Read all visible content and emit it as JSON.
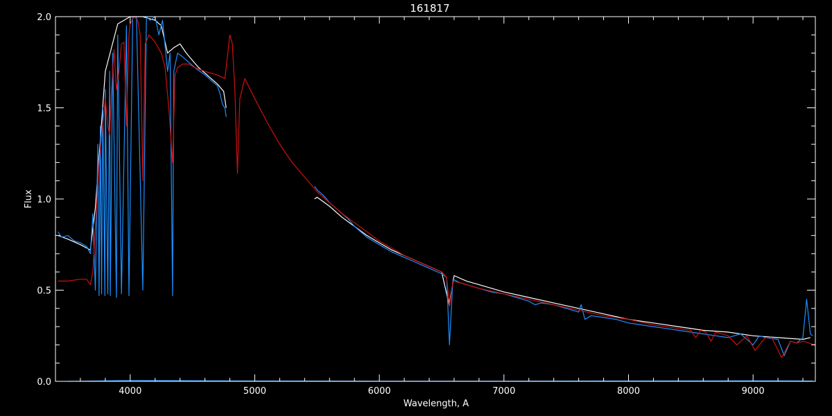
{
  "chart_data": {
    "type": "line",
    "title": "161817",
    "xlabel": "Wavelength, A",
    "ylabel": "Flux",
    "xlim": [
      3400,
      9500
    ],
    "ylim": [
      0.0,
      2.0
    ],
    "x_ticks": [
      4000,
      5000,
      6000,
      7000,
      8000,
      9000
    ],
    "x_tick_labels": [
      "4000",
      "5000",
      "6000",
      "7000",
      "8000",
      "9000"
    ],
    "y_ticks": [
      0.0,
      0.5,
      1.0,
      1.5,
      2.0
    ],
    "y_tick_labels": [
      "0.0",
      "0.5",
      "1.0",
      "1.5",
      "2.0"
    ],
    "x_minor_step": 200,
    "y_minor_step": 0.1,
    "grid": false,
    "colors": {
      "background": "#000000",
      "axes": "#ffffff",
      "white_series": "#ffffff",
      "blue_series": "#1e90ff",
      "red_series": "#d01010"
    },
    "series": [
      {
        "color_key": "white_series",
        "segments": [
          {
            "x": [
              3420,
              3500,
              3600,
              3680,
              3720,
              3800,
              3900,
              4000,
              4100,
              4200,
              4250,
              4300,
              4350,
              4400,
              4450,
              4500,
              4550,
              4600,
              4650,
              4700,
              4750,
              4770
            ],
            "y": [
              0.8,
              0.78,
              0.75,
              0.72,
              0.95,
              1.7,
              1.96,
              2.0,
              2.0,
              1.98,
              1.95,
              1.8,
              1.83,
              1.85,
              1.8,
              1.76,
              1.72,
              1.69,
              1.66,
              1.63,
              1.59,
              1.5
            ]
          },
          {
            "x": [
              5480,
              5500,
              5600,
              5700,
              5800,
              5900,
              6000,
              6100,
              6200,
              6300,
              6400,
              6500,
              6560,
              6600,
              6700,
              6800,
              7000,
              7200,
              7400,
              7600,
              7800,
              8000,
              8200,
              8400,
              8600,
              8800,
              9000,
              9200,
              9400,
              9460
            ],
            "y": [
              1.0,
              1.01,
              0.96,
              0.9,
              0.85,
              0.8,
              0.76,
              0.72,
              0.69,
              0.66,
              0.63,
              0.6,
              0.42,
              0.58,
              0.55,
              0.53,
              0.49,
              0.46,
              0.43,
              0.4,
              0.37,
              0.34,
              0.32,
              0.3,
              0.28,
              0.27,
              0.25,
              0.24,
              0.23,
              0.24
            ]
          }
        ]
      },
      {
        "color_key": "blue_series",
        "segments": [
          {
            "x": [
              3420,
              3450,
              3500,
              3550,
              3600,
              3650,
              3680,
              3700,
              3720,
              3740,
              3750,
              3760,
              3770,
              3780,
              3797,
              3800,
              3820,
              3835,
              3840,
              3860,
              3889,
              3900,
              3930,
              3970,
              3990,
              4020,
              4050,
              4101,
              4130,
              4160,
              4200,
              4230,
              4260,
              4300,
              4320,
              4340,
              4350,
              4380,
              4420,
              4470,
              4520,
              4560,
              4600,
              4650,
              4700,
              4720,
              4740,
              4760,
              4770
            ],
            "y": [
              0.82,
              0.79,
              0.8,
              0.77,
              0.76,
              0.74,
              0.7,
              0.92,
              0.5,
              1.3,
              0.47,
              1.4,
              0.48,
              1.5,
              0.47,
              1.6,
              0.48,
              1.7,
              0.47,
              1.8,
              0.46,
              1.9,
              0.48,
              1.95,
              0.47,
              2.0,
              2.0,
              0.5,
              2.0,
              1.98,
              2.0,
              1.9,
              1.98,
              1.7,
              1.8,
              0.47,
              1.7,
              1.8,
              1.78,
              1.75,
              1.72,
              1.7,
              1.68,
              1.65,
              1.62,
              1.58,
              1.52,
              1.5,
              1.45
            ]
          },
          {
            "x": [
              5480,
              5500,
              5550,
              5600,
              5650,
              5700,
              5750,
              5800,
              5850,
              5900,
              6000,
              6100,
              6200,
              6300,
              6400,
              6500,
              6540,
              6563,
              6590,
              6650,
              6700,
              6800,
              6900,
              7000,
              7100,
              7200,
              7250,
              7300,
              7400,
              7500,
              7600,
              7620,
              7650,
              7700,
              7800,
              7900,
              8000,
              8100,
              8200,
              8300,
              8400,
              8500,
              8600,
              8700,
              8800,
              8900,
              9000,
              9050,
              9100,
              9200,
              9250,
              9300,
              9350,
              9400,
              9430,
              9460,
              9480
            ],
            "y": [
              1.07,
              1.05,
              1.02,
              0.98,
              0.95,
              0.92,
              0.89,
              0.85,
              0.82,
              0.79,
              0.75,
              0.71,
              0.68,
              0.65,
              0.62,
              0.59,
              0.57,
              0.2,
              0.56,
              0.54,
              0.53,
              0.51,
              0.49,
              0.48,
              0.46,
              0.44,
              0.42,
              0.43,
              0.42,
              0.4,
              0.38,
              0.42,
              0.34,
              0.36,
              0.35,
              0.34,
              0.32,
              0.31,
              0.3,
              0.29,
              0.28,
              0.27,
              0.26,
              0.25,
              0.24,
              0.26,
              0.2,
              0.25,
              0.24,
              0.23,
              0.14,
              0.22,
              0.21,
              0.24,
              0.45,
              0.26,
              0.25
            ]
          },
          {
            "x": [
              3500,
              4000,
              5000,
              6000,
              7000,
              8000,
              9000,
              9480
            ],
            "y": [
              0.0,
              0.005,
              0.002,
              0.001,
              0.001,
              0.002,
              0.003,
              0.002
            ]
          }
        ]
      },
      {
        "color_key": "red_series",
        "segments": [
          {
            "x": [
              3420,
              3500,
              3600,
              3650,
              3680,
              3700,
              3750,
              3800,
              3820,
              3835,
              3850,
              3870,
              3889,
              3910,
              3930,
              3950,
              3970,
              3990,
              4000,
              4030,
              4060,
              4080,
              4101,
              4120,
              4150,
              4200,
              4250,
              4280,
              4310,
              4340,
              4360,
              4380,
              4420,
              4470,
              4520,
              4600,
              4700,
              4760,
              4800,
              4820,
              4840,
              4861,
              4880,
              4920,
              5000,
              5100,
              5200,
              5300,
              5400,
              5500,
              5600,
              5700,
              5800,
              5900,
              6000,
              6100,
              6200,
              6300,
              6400,
              6500,
              6540,
              6563,
              6590,
              6650,
              6700,
              6800,
              7000,
              7200,
              7400,
              7600,
              7800,
              8000,
              8200,
              8400,
              8500,
              8540,
              8580,
              8620,
              8662,
              8700,
              8750,
              8800,
              8870,
              8950,
              9015,
              9100,
              9150,
              9229,
              9300,
              9350,
              9400,
              9450,
              9500
            ],
            "y": [
              0.55,
              0.55,
              0.56,
              0.56,
              0.53,
              0.6,
              1.2,
              1.55,
              1.4,
              1.35,
              1.6,
              1.82,
              1.6,
              1.7,
              1.85,
              1.86,
              1.4,
              1.9,
              1.96,
              2.0,
              1.98,
              1.9,
              1.1,
              1.85,
              1.9,
              1.86,
              1.8,
              1.72,
              1.5,
              1.2,
              1.68,
              1.72,
              1.74,
              1.74,
              1.72,
              1.7,
              1.68,
              1.66,
              1.9,
              1.85,
              1.6,
              1.14,
              1.55,
              1.66,
              1.55,
              1.42,
              1.3,
              1.2,
              1.12,
              1.04,
              0.98,
              0.92,
              0.87,
              0.82,
              0.77,
              0.73,
              0.69,
              0.66,
              0.63,
              0.6,
              0.57,
              0.41,
              0.55,
              0.54,
              0.53,
              0.51,
              0.48,
              0.45,
              0.42,
              0.39,
              0.36,
              0.34,
              0.31,
              0.29,
              0.28,
              0.24,
              0.28,
              0.27,
              0.22,
              0.27,
              0.26,
              0.25,
              0.2,
              0.25,
              0.17,
              0.24,
              0.24,
              0.13,
              0.22,
              0.21,
              0.22,
              0.21,
              0.2
            ]
          }
        ]
      }
    ]
  }
}
